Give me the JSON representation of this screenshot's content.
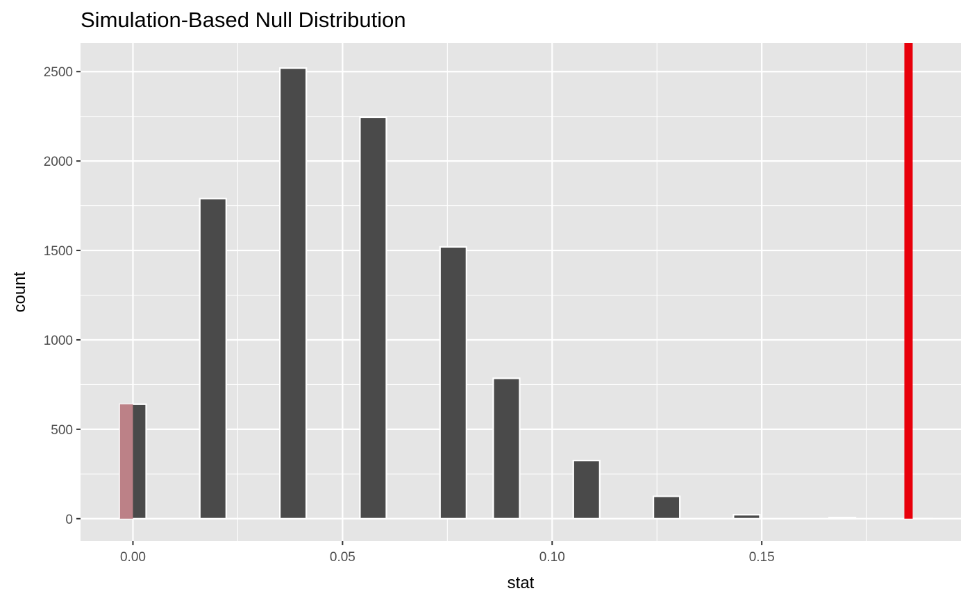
{
  "chart_data": {
    "type": "bar",
    "title": "Simulation-Based Null Distribution",
    "xlabel": "stat",
    "ylabel": "count",
    "xlim": [
      -0.0125,
      0.1975
    ],
    "ylim": [
      -125,
      2660
    ],
    "x_ticks": [
      0.0,
      0.05,
      0.1,
      0.15
    ],
    "x_tick_labels": [
      "0.00",
      "0.05",
      "0.10",
      "0.15"
    ],
    "y_ticks": [
      0,
      500,
      1000,
      1500,
      2000,
      2500
    ],
    "y_tick_labels": [
      "0",
      "500",
      "1000",
      "1500",
      "2000",
      "2500"
    ],
    "grid": true,
    "legend": "none",
    "bin_width": 0.0063,
    "bins": [
      {
        "x": 0.0,
        "count": 640
      },
      {
        "x": 0.0191,
        "count": 1790
      },
      {
        "x": 0.0382,
        "count": 2520
      },
      {
        "x": 0.0573,
        "count": 2245
      },
      {
        "x": 0.0764,
        "count": 1520
      },
      {
        "x": 0.0891,
        "count": 785
      },
      {
        "x": 0.1082,
        "count": 325
      },
      {
        "x": 0.1273,
        "count": 125
      },
      {
        "x": 0.1464,
        "count": 22
      },
      {
        "x": 0.1692,
        "count": 6
      },
      {
        "x": 0.1875,
        "count": 1
      }
    ],
    "shaded_region": {
      "from": -0.0031,
      "to": 0.0,
      "count": 640,
      "color": "#bc8187"
    },
    "observed_stat": {
      "value": 0.185,
      "color": "#e8000b"
    },
    "colors": {
      "panel": "#e5e5e5",
      "grid_major": "#ffffff",
      "bar_fill": "#4a4a4a",
      "bar_outline": "#ffffff"
    }
  }
}
